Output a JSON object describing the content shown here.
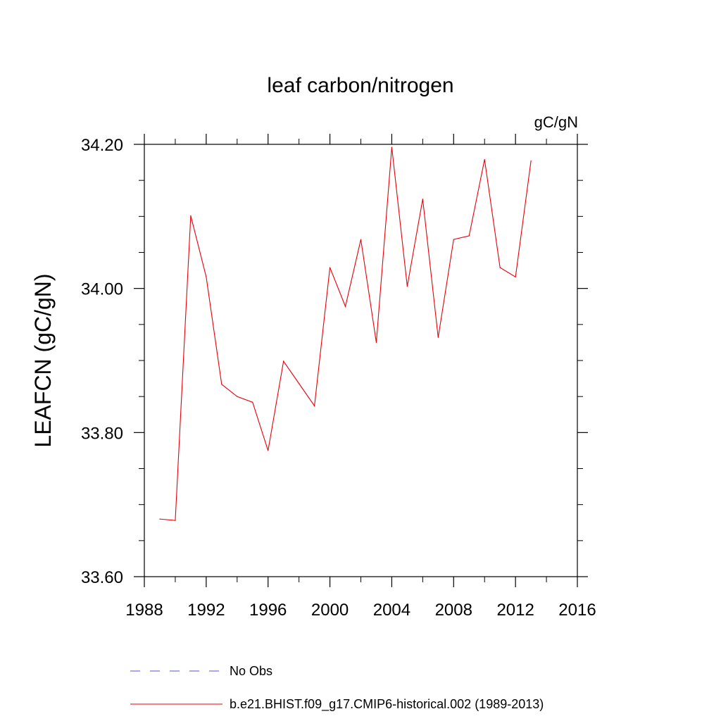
{
  "chart_data": {
    "type": "line",
    "title": "leaf carbon/nitrogen",
    "units": "gC/gN",
    "ylabel": "LEAFCN  (gC/gN)",
    "xlabel": "",
    "xlim": [
      1988,
      2016
    ],
    "ylim": [
      33.6,
      34.2
    ],
    "x_ticks": [
      1988,
      1992,
      1996,
      2000,
      2004,
      2008,
      2012,
      2016
    ],
    "x_tick_labels": [
      "1988",
      "1992",
      "1996",
      "2000",
      "2004",
      "2008",
      "2012",
      "2016"
    ],
    "y_ticks": [
      33.6,
      33.8,
      34.0,
      34.2
    ],
    "y_tick_labels": [
      "33.60",
      "33.80",
      "34.00",
      "34.20"
    ],
    "x_minor_step": 2,
    "y_minor_step": 0.05,
    "grid": false,
    "legend_position": "bottom",
    "series": [
      {
        "name": "No Obs",
        "color": "#5a4fcf",
        "style": "dashed",
        "x": [],
        "values": []
      },
      {
        "name": "b.e21.BHIST.f09_g17.CMIP6-historical.002 (1989-2013)",
        "color": "#e8000b",
        "style": "solid",
        "x": [
          1989,
          1990,
          1991,
          1992,
          1993,
          1994,
          1995,
          1996,
          1997,
          1998,
          1999,
          2000,
          2001,
          2002,
          2003,
          2004,
          2005,
          2006,
          2007,
          2008,
          2009,
          2010,
          2011,
          2012,
          2013
        ],
        "values": [
          33.68,
          33.678,
          34.101,
          34.016,
          33.867,
          33.85,
          33.842,
          33.775,
          33.899,
          33.868,
          33.837,
          34.029,
          33.975,
          34.068,
          33.925,
          34.196,
          34.003,
          34.124,
          33.932,
          34.068,
          34.073,
          34.179,
          34.029,
          34.016,
          34.177
        ]
      }
    ]
  }
}
